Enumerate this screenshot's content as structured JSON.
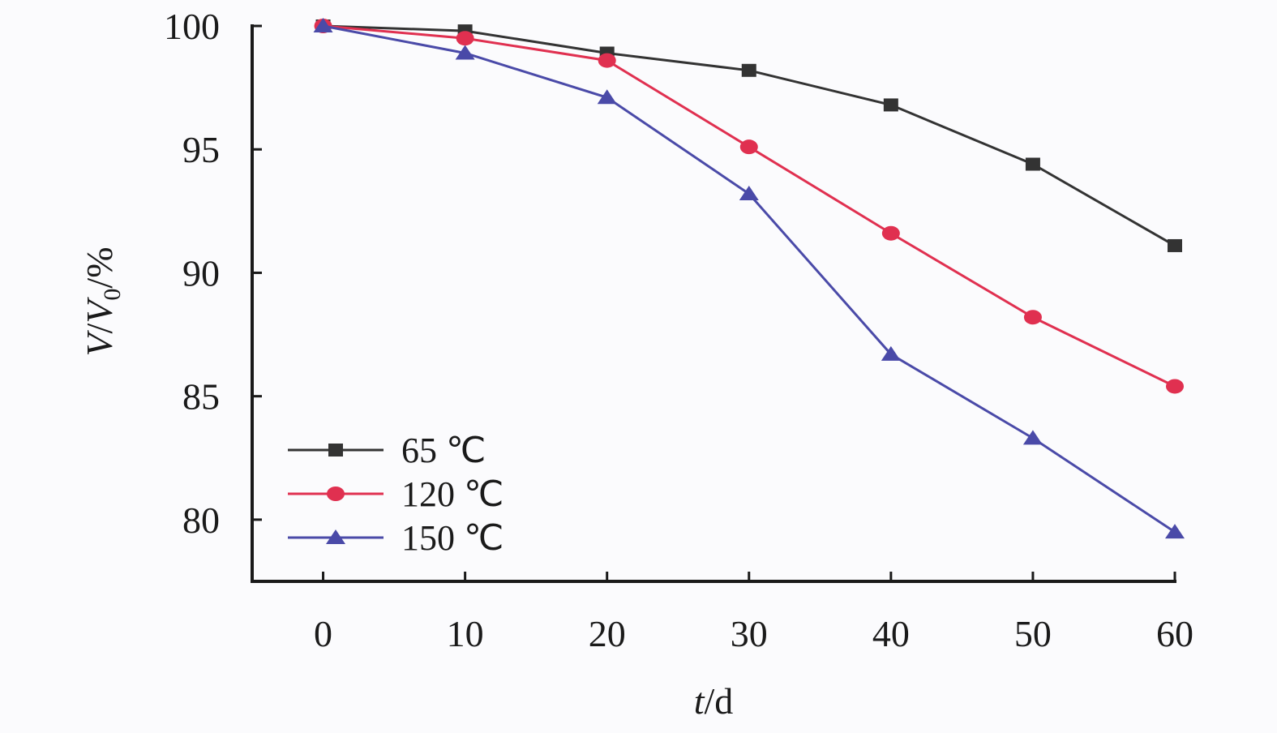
{
  "chart_data": {
    "type": "line",
    "x": [
      0,
      10,
      20,
      30,
      40,
      50,
      60
    ],
    "xticks": [
      "0",
      "10",
      "20",
      "30",
      "40",
      "50",
      "60"
    ],
    "yticks": [
      "80",
      "85",
      "90",
      "95",
      "100"
    ],
    "xlabel": {
      "main": "t",
      "suffix": "/d"
    },
    "ylabel": {
      "v1": "V",
      "slash": "/",
      "v2": "V",
      "sub": "0",
      "suffix": "/%"
    },
    "xlim": [
      -5,
      60
    ],
    "ylim": [
      77.5,
      100
    ],
    "grid": false,
    "legend_position": "bottom-left",
    "series": [
      {
        "name": "65 ℃",
        "color": "#333333",
        "marker": "square",
        "values": [
          100,
          99.8,
          98.9,
          98.2,
          96.8,
          94.4,
          91.1
        ]
      },
      {
        "name": "120 ℃",
        "color": "#e03050",
        "marker": "circle",
        "values": [
          100,
          99.5,
          98.6,
          95.1,
          91.6,
          88.2,
          85.4
        ]
      },
      {
        "name": "150 ℃",
        "color": "#4a4aa8",
        "marker": "triangle",
        "values": [
          100,
          98.9,
          97.1,
          93.2,
          86.7,
          83.3,
          79.5
        ]
      }
    ]
  }
}
